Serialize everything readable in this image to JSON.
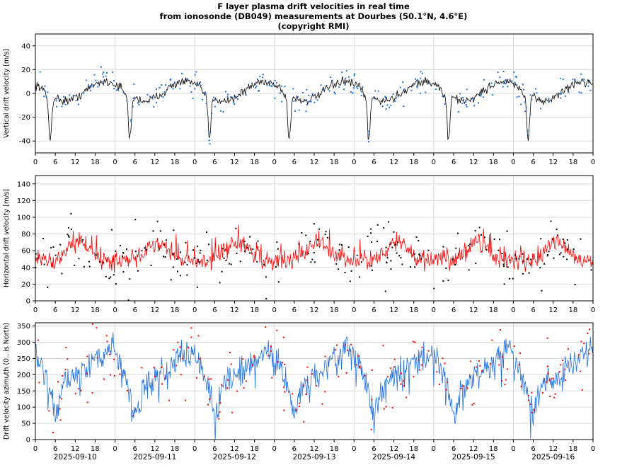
{
  "title_lines": [
    "F layer plasma drift velocities in real time",
    "from ionosonde (DB049) measurements at Dourbes (50.1°N, 4.6°E)",
    "(copyright RMI)"
  ],
  "chart_data": [
    {
      "type": "line",
      "ylabel": "Vertical drift velocity [m/s]",
      "ylim": [
        -50,
        50
      ],
      "yticks": [
        -40,
        -20,
        0,
        20,
        40
      ],
      "grid": true,
      "series_colors": {
        "line": "#000000",
        "points": "#1e6fe0"
      },
      "daily_pattern": {
        "pre_sunrise_minimum": -32,
        "minimum_hour": 4.5,
        "evening_peak": 12,
        "evening_peak_hour": 21
      },
      "scatter_spread": 20
    },
    {
      "type": "line",
      "ylabel": "Horizontal drift velocity [m/s]",
      "ylim": [
        0,
        150
      ],
      "yticks": [
        0,
        20,
        40,
        60,
        80,
        100,
        120,
        140
      ],
      "grid": true,
      "series_colors": {
        "line": "#ff0000",
        "points": "#000000"
      },
      "daily_pattern": {
        "day_mean": 70,
        "night_mean": 48,
        "peak_hour": 13
      },
      "scatter_spread": 40
    },
    {
      "type": "line",
      "ylabel": "Drift velocity azimuth (0.. is North)",
      "ylim": [
        0,
        360
      ],
      "yticks": [
        0,
        50,
        100,
        150,
        200,
        250,
        300,
        350
      ],
      "grid": true,
      "series_colors": {
        "line": "#1e6fe0",
        "points": "#ff0000"
      },
      "daily_pattern": {
        "morning_low": 60,
        "morning_low_hour": 5,
        "evening_high": 290,
        "evening_high_hour": 22
      },
      "scatter_spread": 120
    }
  ],
  "x_axis": {
    "hour_tick_labels": [
      "0",
      "6",
      "12",
      "18",
      "0",
      "6",
      "12",
      "18",
      "0",
      "6",
      "12",
      "18",
      "0",
      "6",
      "12",
      "18",
      "0",
      "6",
      "12",
      "18",
      "0",
      "6",
      "12",
      "18",
      "0",
      "6",
      "12",
      "18",
      "0"
    ],
    "date_labels": [
      "2025-09-10",
      "2025-09-11",
      "2025-09-12",
      "2025-09-13",
      "2025-09-14",
      "2025-09-15",
      "2025-09-16"
    ],
    "days": 7
  }
}
